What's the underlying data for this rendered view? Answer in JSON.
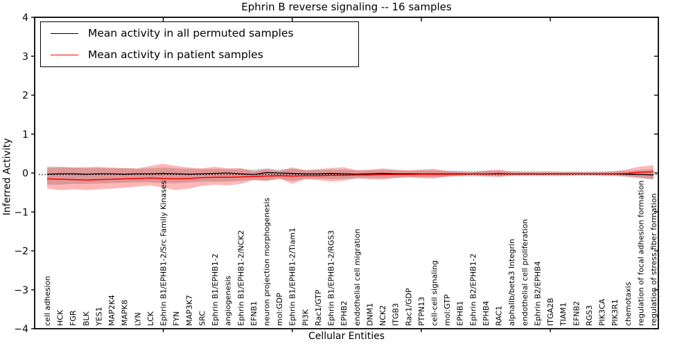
{
  "title": "Ephrin B reverse signaling -- 16 samples",
  "axes": {
    "ylabel": "Inferred Activity",
    "xlabel": "Cellular Entities",
    "yticks": [
      "4",
      "3",
      "2",
      "1",
      "0",
      "−1",
      "−2",
      "−3",
      "−4"
    ],
    "ytick_values": [
      4,
      3,
      2,
      1,
      0,
      -1,
      -2,
      -3,
      -4
    ],
    "xticks_major_positions": [
      10,
      20,
      30,
      40
    ]
  },
  "legend": {
    "entries": [
      {
        "label": "Mean activity in all permuted samples",
        "color": "#000000"
      },
      {
        "label": "Mean activity in patient samples",
        "color": "#ff0000"
      }
    ]
  },
  "chart_data": {
    "type": "line",
    "title": "Ephrin B reverse signaling -- 16 samples",
    "xlabel": "Cellular Entities",
    "ylabel": "Inferred Activity",
    "ylim": [
      -4,
      4
    ],
    "grid": false,
    "legend_position": "upper left",
    "dotted_baseline": -0.04,
    "categories": [
      "cell adhesion",
      "HCK",
      "FGR",
      "BLK",
      "YES1",
      "MAP2K4",
      "MAPK8",
      "LYN",
      "LCK",
      "Ephrin B1/EPHB1-2/Src Family Kinases",
      "FYN",
      "MAP3K7",
      "SRC",
      "Ephrin B1/EPHB1-2",
      "angiogenesis",
      "Ephrin B1/EPHB1-2/NCK2",
      "EFNB1",
      "neuron projection morphogenesis",
      "mol:GDP",
      "Ephrin B1/EPHB1-2/Tiam1",
      "PI3K",
      "Rac1/GTP",
      "Ephrin B1/EPHB1-2/RGS3",
      "EPHB2",
      "endothelial cell migration",
      "DNM1",
      "NCK2",
      "ITGB3",
      "Rac1/GDP",
      "PTPN13",
      "cell-cell signaling",
      "mol:GTP",
      "EPHB1",
      "Ephrin B2/EPHB1-2",
      "EPHB4",
      "RAC1",
      "alphaIIb/beta3 Integrin",
      "endothelial cell proliferation",
      "Ephrin B2/EPHB4",
      "ITGA2B",
      "TIAM1",
      "EFNB2",
      "RGS3",
      "PIK3CA",
      "PIK3R1",
      "chemotaxis",
      "regulation of focal adhesion formation",
      "regulation of stress fiber formation"
    ],
    "series": [
      {
        "name": "Mean activity in all permuted samples",
        "color": "#000000",
        "style": "solid",
        "values": [
          -0.03,
          -0.02,
          -0.02,
          -0.03,
          -0.02,
          -0.02,
          -0.03,
          -0.02,
          -0.02,
          -0.01,
          -0.02,
          -0.03,
          -0.02,
          -0.01,
          0.0,
          -0.02,
          -0.04,
          0.01,
          0.0,
          -0.01,
          -0.02,
          -0.02,
          -0.01,
          -0.02,
          -0.03,
          -0.02,
          -0.01,
          -0.02,
          -0.02,
          -0.02,
          -0.02,
          -0.02,
          -0.02,
          -0.02,
          -0.02,
          -0.01,
          -0.02,
          -0.02,
          -0.02,
          -0.02,
          -0.02,
          -0.02,
          -0.02,
          -0.02,
          -0.02,
          -0.03,
          -0.04,
          -0.05
        ]
      },
      {
        "name": "Mean activity in patient samples",
        "color": "#ff0000",
        "style": "solid",
        "values": [
          -0.15,
          -0.16,
          -0.17,
          -0.18,
          -0.17,
          -0.16,
          -0.15,
          -0.14,
          -0.13,
          -0.14,
          -0.15,
          -0.14,
          -0.12,
          -0.11,
          -0.11,
          -0.1,
          -0.09,
          -0.08,
          -0.07,
          -0.08,
          -0.07,
          -0.07,
          -0.06,
          -0.06,
          -0.05,
          -0.05,
          -0.04,
          -0.04,
          -0.04,
          -0.03,
          -0.03,
          -0.03,
          -0.03,
          -0.02,
          -0.02,
          -0.02,
          -0.02,
          -0.02,
          -0.02,
          -0.02,
          -0.02,
          -0.02,
          -0.02,
          -0.02,
          -0.02,
          -0.01,
          0.02,
          0.03
        ]
      }
    ],
    "bands": [
      {
        "name": "permuted samples std band",
        "color": "#888888",
        "opacity": 0.38,
        "upper": [
          0.17,
          0.16,
          0.14,
          0.13,
          0.13,
          0.12,
          0.12,
          0.11,
          0.12,
          0.14,
          0.12,
          0.11,
          0.1,
          0.11,
          0.1,
          0.1,
          0.09,
          0.12,
          0.09,
          0.11,
          0.08,
          0.08,
          0.09,
          0.09,
          0.07,
          0.07,
          0.08,
          0.07,
          0.06,
          0.07,
          0.07,
          0.06,
          0.06,
          0.05,
          0.06,
          0.06,
          0.05,
          0.05,
          0.05,
          0.05,
          0.04,
          0.04,
          0.04,
          0.04,
          0.05,
          0.06,
          0.08,
          0.1
        ],
        "lower": [
          -0.3,
          -0.3,
          -0.28,
          -0.28,
          -0.27,
          -0.26,
          -0.25,
          -0.24,
          -0.24,
          -0.26,
          -0.26,
          -0.24,
          -0.22,
          -0.22,
          -0.22,
          -0.2,
          -0.18,
          -0.2,
          -0.16,
          -0.2,
          -0.15,
          -0.15,
          -0.16,
          -0.15,
          -0.13,
          -0.13,
          -0.13,
          -0.12,
          -0.11,
          -0.11,
          -0.11,
          -0.1,
          -0.09,
          -0.09,
          -0.09,
          -0.09,
          -0.08,
          -0.08,
          -0.08,
          -0.08,
          -0.08,
          -0.07,
          -0.07,
          -0.08,
          -0.08,
          -0.1,
          -0.14,
          -0.17
        ]
      },
      {
        "name": "patient samples std band",
        "color": "#ff0000",
        "opacity": 0.28,
        "upper": [
          0.13,
          0.15,
          0.14,
          0.15,
          0.16,
          0.14,
          0.13,
          0.12,
          0.18,
          0.24,
          0.18,
          0.14,
          0.12,
          0.16,
          0.12,
          0.13,
          0.04,
          0.1,
          0.05,
          0.15,
          0.07,
          0.1,
          0.13,
          0.15,
          0.07,
          0.09,
          0.12,
          0.09,
          0.07,
          0.09,
          0.11,
          0.05,
          0.03,
          0.02,
          0.06,
          0.09,
          0.03,
          0.02,
          0.02,
          0.02,
          0.02,
          0.02,
          0.02,
          0.03,
          0.04,
          0.1,
          0.17,
          0.2
        ],
        "lower": [
          -0.4,
          -0.44,
          -0.42,
          -0.44,
          -0.42,
          -0.4,
          -0.38,
          -0.35,
          -0.32,
          -0.38,
          -0.44,
          -0.4,
          -0.33,
          -0.3,
          -0.32,
          -0.28,
          -0.18,
          -0.2,
          -0.14,
          -0.28,
          -0.16,
          -0.18,
          -0.22,
          -0.2,
          -0.14,
          -0.16,
          -0.17,
          -0.13,
          -0.11,
          -0.13,
          -0.14,
          -0.09,
          -0.06,
          -0.05,
          -0.08,
          -0.1,
          -0.06,
          -0.05,
          -0.05,
          -0.05,
          -0.05,
          -0.04,
          -0.04,
          -0.05,
          -0.06,
          -0.09,
          -0.12,
          -0.15
        ]
      }
    ]
  }
}
